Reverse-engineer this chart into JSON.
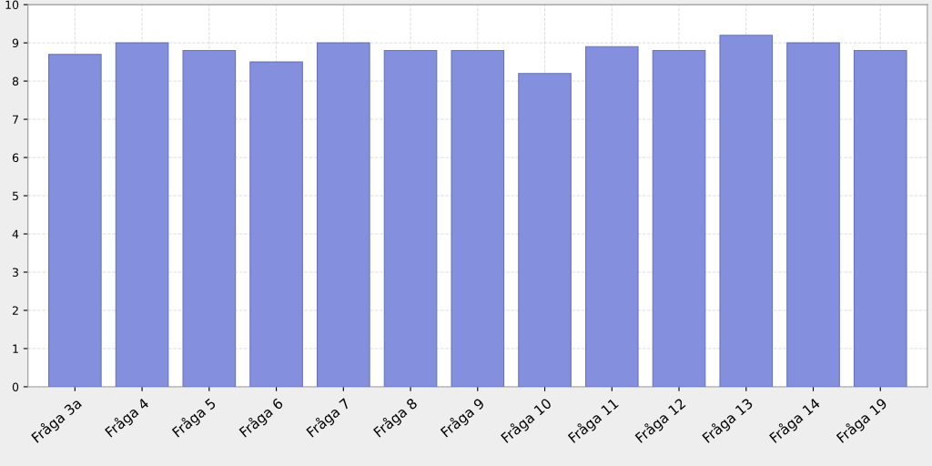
{
  "chart_data": {
    "type": "bar",
    "categories": [
      "Fråga 3a",
      "Fråga 4",
      "Fråga 5",
      "Fråga 6",
      "Fråga 7",
      "Fråga 8",
      "Fråga 9",
      "Fråga 10",
      "Fråga 11",
      "Fråga 12",
      "Fråga 13",
      "Fråga 14",
      "Fråga 19"
    ],
    "values": [
      8.7,
      9.0,
      8.8,
      8.5,
      9.0,
      8.8,
      8.8,
      8.2,
      8.9,
      8.8,
      9.2,
      9.0,
      8.8
    ],
    "color": "#8490dd",
    "ylim": [
      0,
      10
    ],
    "yticks": [
      0,
      1,
      2,
      3,
      4,
      5,
      6,
      7,
      8,
      9,
      10
    ],
    "grid": true
  }
}
